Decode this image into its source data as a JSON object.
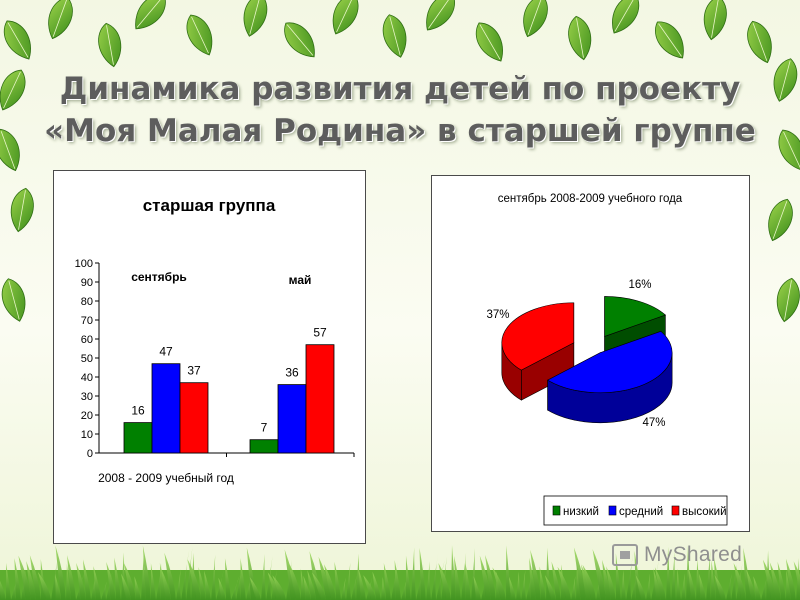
{
  "slide": {
    "title_line1": "Динамика развития детей по проекту",
    "title_line2": "«Моя Малая Родина» в старшей группе"
  },
  "watermark": {
    "text": "MyShared"
  },
  "chart_data": [
    {
      "type": "bar",
      "title": "старшая группа",
      "categories": [
        "сентябрь",
        "май"
      ],
      "series": [
        {
          "values": [
            16,
            7
          ],
          "color": "#008000"
        },
        {
          "values": [
            47,
            36
          ],
          "color": "#0000ff"
        },
        {
          "values": [
            37,
            57
          ],
          "color": "#ff0000"
        }
      ],
      "ylim": [
        0,
        100
      ],
      "yticks": [
        "0",
        "10",
        "20",
        "30",
        "40",
        "50",
        "60",
        "70",
        "80",
        "90",
        "100"
      ],
      "xlabel": "2008 - 2009 учебный год",
      "grid": false,
      "legend": "none"
    },
    {
      "type": "pie",
      "title": "сентябрь 2008-2009 учебного года",
      "labels": [
        "низкий",
        "средний",
        "высокий"
      ],
      "values": [
        16,
        47,
        37
      ],
      "value_labels": [
        "16%",
        "47%",
        "37%"
      ],
      "colors": [
        "#008000",
        "#0000ff",
        "#ff0000"
      ],
      "legend": "bottom",
      "style": "3d-exploded"
    }
  ]
}
